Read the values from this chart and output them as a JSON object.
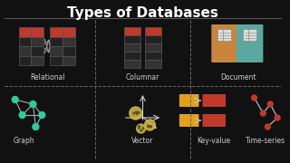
{
  "title": "Types of Databases",
  "bg_color": "#111111",
  "title_color": "#ffffff",
  "grid_line_color": "#555555",
  "section_labels": [
    "Relational",
    "Columnar",
    "Document",
    "Graph",
    "Vector",
    "Key-value",
    "Time-series"
  ],
  "label_color": "#cccccc",
  "red_color": "#c0392b",
  "dark_row_color": "#222222",
  "orange_color": "#e07020",
  "teal_color": "#2ecc9a",
  "doc_bg1": "#c8863c",
  "doc_bg2": "#5ba8a0",
  "arrow_color": "#aaaaaa",
  "dashed_line_color": "#666666",
  "kv_key_color": "#e0a020",
  "kv_val_color": "#c0392b",
  "ts_node_color": "#c0392b",
  "ts_line_color": "#cccccc"
}
